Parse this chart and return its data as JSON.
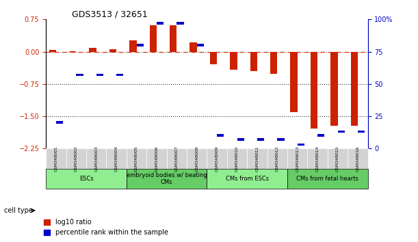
{
  "title": "GDS3513 / 32651",
  "samples": [
    "GSM348001",
    "GSM348002",
    "GSM348003",
    "GSM348004",
    "GSM348005",
    "GSM348006",
    "GSM348007",
    "GSM348008",
    "GSM348009",
    "GSM348010",
    "GSM348011",
    "GSM348012",
    "GSM348013",
    "GSM348014",
    "GSM348015",
    "GSM348016"
  ],
  "log10_ratio": [
    0.04,
    0.01,
    0.08,
    0.05,
    0.27,
    0.62,
    0.62,
    0.22,
    -0.3,
    -0.42,
    -0.46,
    -0.52,
    -1.4,
    -1.78,
    -1.72,
    -1.72
  ],
  "percentile_rank": [
    20,
    57,
    57,
    57,
    80,
    97,
    97,
    80,
    10,
    7,
    7,
    7,
    3,
    10,
    13,
    13
  ],
  "ylim_left": [
    -2.25,
    0.75
  ],
  "ylim_right": [
    0,
    100
  ],
  "yticks_left": [
    0.75,
    0,
    -0.75,
    -1.5,
    -2.25
  ],
  "yticks_right": [
    100,
    75,
    50,
    25,
    0
  ],
  "hlines": [
    0,
    -0.75,
    -1.5
  ],
  "cell_type_groups": [
    {
      "label": "ESCs",
      "start": 0,
      "end": 3,
      "color": "#90EE90"
    },
    {
      "label": "embryoid bodies w/ beating\nCMs",
      "start": 4,
      "end": 7,
      "color": "#66CC66"
    },
    {
      "label": "CMs from ESCs",
      "start": 8,
      "end": 11,
      "color": "#90EE90"
    },
    {
      "label": "CMs from fetal hearts",
      "start": 12,
      "end": 15,
      "color": "#66CC66"
    }
  ],
  "bar_color_red": "#CC2200",
  "bar_color_blue": "#0000CC",
  "zero_line_color": "#CC2200",
  "dot_line_color": "#333333",
  "bg_color": "#FFFFFF",
  "plot_bg": "#FFFFFF",
  "bar_width": 0.35
}
